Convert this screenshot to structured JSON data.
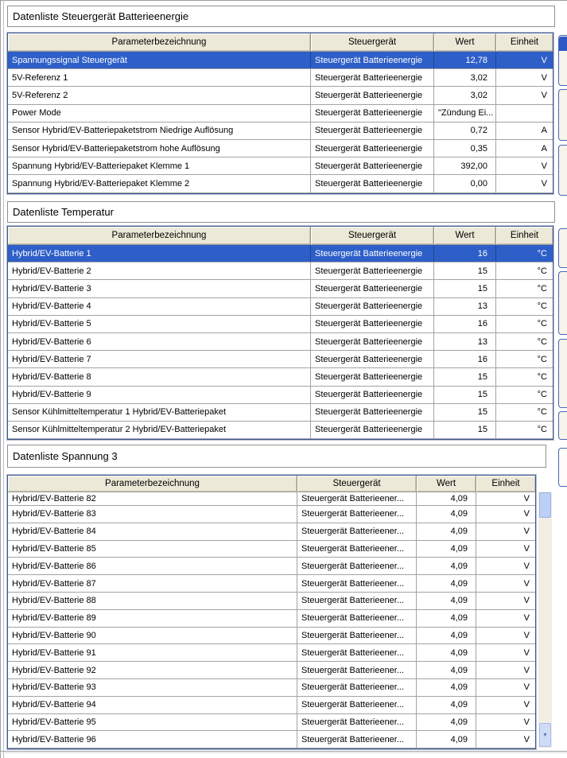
{
  "theme": {
    "header_bg": "#ece9d8",
    "selection_bg": "#2e5fc8",
    "selection_text": "#ffffff",
    "grid_line": "#a3a3a3",
    "table_border": "#3d5795",
    "scrollbar_thumb": "#bccff6",
    "side_panel_border": "#4a67b4"
  },
  "icons": {
    "scroll_down": "▼"
  },
  "panels": [
    {
      "title": "Datenliste Steuergerät Batterieenergie",
      "columns": [
        "Parameterbezeichnung",
        "Steuergerät",
        "Wert",
        "Einheit"
      ],
      "selected_row": 0,
      "rows": [
        [
          "Spannungssignal Steuergerät",
          "Steuergerät Batterieenergie",
          "12,78",
          "V"
        ],
        [
          "5V-Referenz 1",
          "Steuergerät Batterieenergie",
          "3,02",
          "V"
        ],
        [
          "5V-Referenz 2",
          "Steuergerät Batterieenergie",
          "3,02",
          "V"
        ],
        [
          "Power Mode",
          "Steuergerät Batterieenergie",
          "\"Zündung Ei...",
          ""
        ],
        [
          "Sensor Hybrid/EV-Batteriepaketstrom Niedrige Auflösung",
          "Steuergerät Batterieenergie",
          "0,72",
          "A"
        ],
        [
          "Sensor Hybrid/EV-Batteriepaketstrom hohe Auflösung",
          "Steuergerät Batterieenergie",
          "0,35",
          "A"
        ],
        [
          "Spannung Hybrid/EV-Batteriepaket Klemme 1",
          "Steuergerät Batterieenergie",
          "392,00",
          "V"
        ],
        [
          "Spannung Hybrid/EV-Batteriepaket Klemme 2",
          "Steuergerät Batterieenergie",
          "0,00",
          "V"
        ]
      ]
    },
    {
      "title": "Datenliste Temperatur",
      "columns": [
        "Parameterbezeichnung",
        "Steuergerät",
        "Wert",
        "Einheit"
      ],
      "selected_row": 0,
      "rows": [
        [
          "Hybrid/EV-Batterie 1",
          "Steuergerät Batterieenergie",
          "16",
          "°C"
        ],
        [
          "Hybrid/EV-Batterie 2",
          "Steuergerät Batterieenergie",
          "15",
          "°C"
        ],
        [
          "Hybrid/EV-Batterie 3",
          "Steuergerät Batterieenergie",
          "15",
          "°C"
        ],
        [
          "Hybrid/EV-Batterie 4",
          "Steuergerät Batterieenergie",
          "13",
          "°C"
        ],
        [
          "Hybrid/EV-Batterie 5",
          "Steuergerät Batterieenergie",
          "16",
          "°C"
        ],
        [
          "Hybrid/EV-Batterie 6",
          "Steuergerät Batterieenergie",
          "13",
          "°C"
        ],
        [
          "Hybrid/EV-Batterie 7",
          "Steuergerät Batterieenergie",
          "16",
          "°C"
        ],
        [
          "Hybrid/EV-Batterie 8",
          "Steuergerät Batterieenergie",
          "15",
          "°C"
        ],
        [
          "Hybrid/EV-Batterie 9",
          "Steuergerät Batterieenergie",
          "15",
          "°C"
        ],
        [
          "Sensor Kühlmitteltemperatur 1 Hybrid/EV-Batteriepaket",
          "Steuergerät Batterieenergie",
          "15",
          "°C"
        ],
        [
          "Sensor Kühlmitteltemperatur 2 Hybrid/EV-Batteriepaket",
          "Steuergerät Batterieenergie",
          "15",
          "°C"
        ]
      ]
    },
    {
      "title": "Datenliste Spannung 3",
      "columns": [
        "Parameterbezeichnung",
        "Steuergerät",
        "Wert",
        "Einheit"
      ],
      "selected_row": null,
      "rows": [
        [
          "Hybrid/EV-Batterie 82",
          "Steuergerät Batterieener...",
          "4,09",
          "V"
        ],
        [
          "Hybrid/EV-Batterie 83",
          "Steuergerät Batterieener...",
          "4,09",
          "V"
        ],
        [
          "Hybrid/EV-Batterie 84",
          "Steuergerät Batterieener...",
          "4,09",
          "V"
        ],
        [
          "Hybrid/EV-Batterie 85",
          "Steuergerät Batterieener...",
          "4,09",
          "V"
        ],
        [
          "Hybrid/EV-Batterie 86",
          "Steuergerät Batterieener...",
          "4,09",
          "V"
        ],
        [
          "Hybrid/EV-Batterie 87",
          "Steuergerät Batterieener...",
          "4,09",
          "V"
        ],
        [
          "Hybrid/EV-Batterie 88",
          "Steuergerät Batterieener...",
          "4,09",
          "V"
        ],
        [
          "Hybrid/EV-Batterie 89",
          "Steuergerät Batterieener...",
          "4,09",
          "V"
        ],
        [
          "Hybrid/EV-Batterie 90",
          "Steuergerät Batterieener...",
          "4,09",
          "V"
        ],
        [
          "Hybrid/EV-Batterie 91",
          "Steuergerät Batterieener...",
          "4,09",
          "V"
        ],
        [
          "Hybrid/EV-Batterie 92",
          "Steuergerät Batterieener...",
          "4,09",
          "V"
        ],
        [
          "Hybrid/EV-Batterie 93",
          "Steuergerät Batterieener...",
          "4,09",
          "V"
        ],
        [
          "Hybrid/EV-Batterie 94",
          "Steuergerät Batterieener...",
          "4,09",
          "V"
        ],
        [
          "Hybrid/EV-Batterie 95",
          "Steuergerät Batterieener...",
          "4,09",
          "V"
        ],
        [
          "Hybrid/EV-Batterie 96",
          "Steuergerät Batterieener...",
          "4,09",
          "V"
        ]
      ]
    }
  ]
}
